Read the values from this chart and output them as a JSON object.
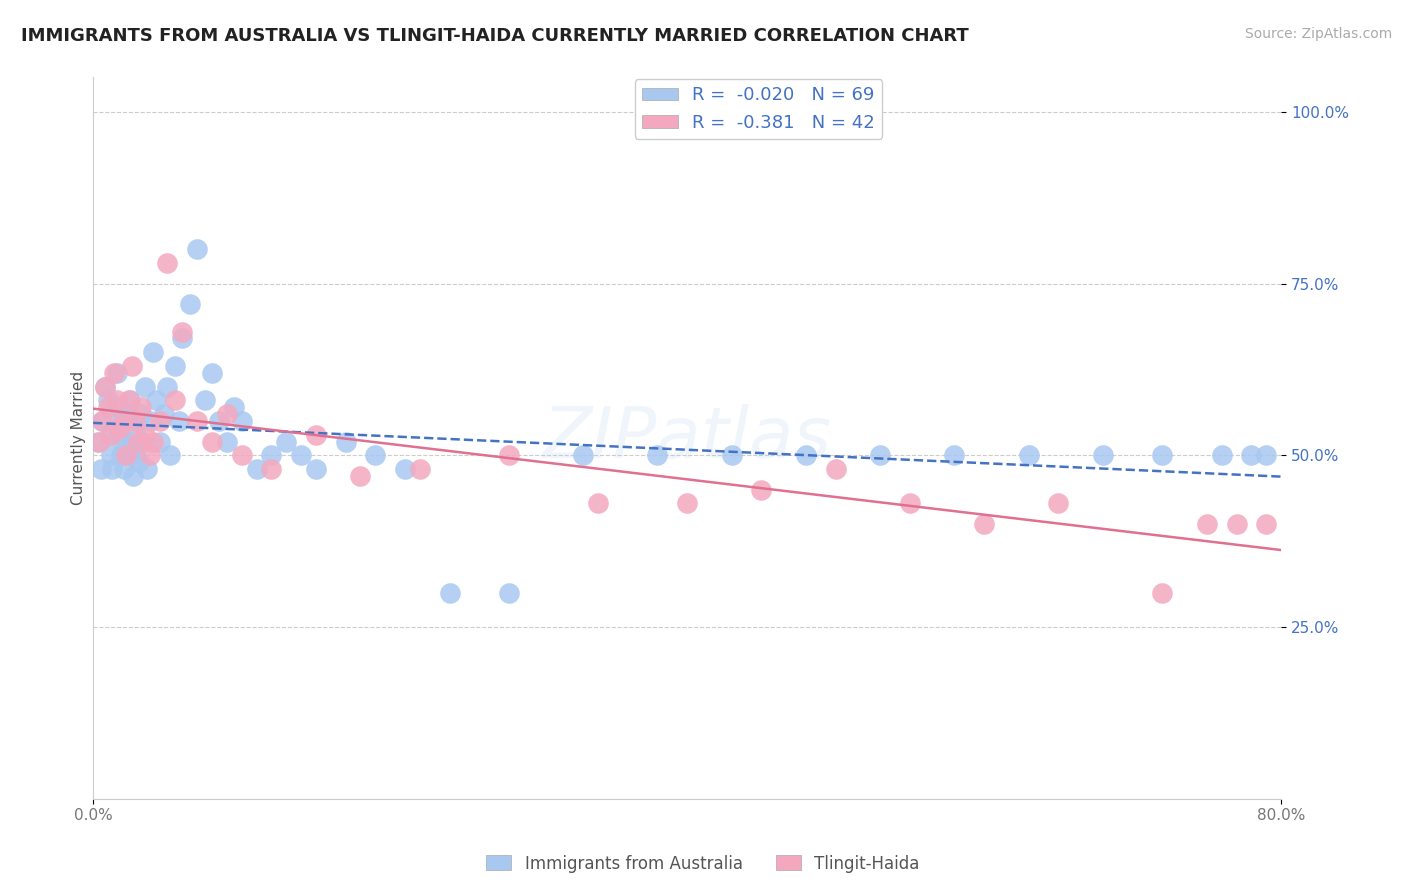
{
  "title": "IMMIGRANTS FROM AUSTRALIA VS TLINGIT-HAIDA CURRENTLY MARRIED CORRELATION CHART",
  "source_text": "Source: ZipAtlas.com",
  "ylabel": "Currently Married",
  "xlim": [
    0.0,
    80.0
  ],
  "ylim": [
    0.0,
    105.0
  ],
  "ytick_positions": [
    25.0,
    50.0,
    75.0,
    100.0
  ],
  "ytick_labels": [
    "25.0%",
    "50.0%",
    "75.0%",
    "100.0%"
  ],
  "background_color": "#ffffff",
  "series": [
    {
      "name": "Immigrants from Australia",
      "R": -0.02,
      "N": 69,
      "color": "#a8c8f0",
      "line_color": "#4472c4",
      "line_style": "--",
      "x": [
        0.3,
        0.5,
        0.6,
        0.8,
        1.0,
        1.1,
        1.2,
        1.3,
        1.5,
        1.6,
        1.7,
        1.8,
        1.9,
        2.0,
        2.1,
        2.2,
        2.3,
        2.4,
        2.5,
        2.6,
        2.7,
        2.8,
        2.9,
        3.0,
        3.1,
        3.2,
        3.3,
        3.5,
        3.6,
        3.8,
        4.0,
        4.2,
        4.5,
        4.8,
        5.0,
        5.2,
        5.5,
        5.8,
        6.0,
        6.5,
        7.0,
        7.5,
        8.0,
        8.5,
        9.0,
        9.5,
        10.0,
        11.0,
        12.0,
        13.0,
        14.0,
        15.0,
        17.0,
        19.0,
        21.0,
        24.0,
        28.0,
        33.0,
        38.0,
        43.0,
        48.0,
        53.0,
        58.0,
        63.0,
        68.0,
        72.0,
        76.0,
        78.0,
        79.0
      ],
      "y": [
        52.0,
        48.0,
        55.0,
        60.0,
        58.0,
        53.0,
        50.0,
        48.0,
        55.0,
        62.0,
        57.0,
        53.0,
        50.0,
        52.0,
        48.0,
        55.0,
        50.0,
        56.0,
        58.0,
        52.0,
        47.0,
        50.0,
        53.0,
        55.0,
        49.0,
        56.0,
        52.0,
        60.0,
        48.0,
        55.0,
        65.0,
        58.0,
        52.0,
        56.0,
        60.0,
        50.0,
        63.0,
        55.0,
        67.0,
        72.0,
        80.0,
        58.0,
        62.0,
        55.0,
        52.0,
        57.0,
        55.0,
        48.0,
        50.0,
        52.0,
        50.0,
        48.0,
        52.0,
        50.0,
        48.0,
        30.0,
        30.0,
        50.0,
        50.0,
        50.0,
        50.0,
        50.0,
        50.0,
        50.0,
        50.0,
        50.0,
        50.0,
        50.0,
        50.0
      ]
    },
    {
      "name": "Tlingit-Haida",
      "R": -0.381,
      "N": 42,
      "color": "#f4a8c0",
      "line_color": "#e07090",
      "line_style": "-",
      "x": [
        0.4,
        0.6,
        0.8,
        1.0,
        1.2,
        1.4,
        1.6,
        1.8,
        2.0,
        2.2,
        2.4,
        2.6,
        2.8,
        3.0,
        3.2,
        3.5,
        3.8,
        4.0,
        4.5,
        5.0,
        5.5,
        6.0,
        7.0,
        8.0,
        9.0,
        10.0,
        12.0,
        15.0,
        18.0,
        22.0,
        28.0,
        34.0,
        40.0,
        45.0,
        50.0,
        55.0,
        60.0,
        65.0,
        72.0,
        75.0,
        77.0,
        79.0
      ],
      "y": [
        52.0,
        55.0,
        60.0,
        57.0,
        53.0,
        62.0,
        58.0,
        54.0,
        55.0,
        50.0,
        58.0,
        63.0,
        55.0,
        52.0,
        57.0,
        53.0,
        50.0,
        52.0,
        55.0,
        78.0,
        58.0,
        68.0,
        55.0,
        52.0,
        56.0,
        50.0,
        48.0,
        53.0,
        47.0,
        48.0,
        50.0,
        43.0,
        43.0,
        45.0,
        48.0,
        43.0,
        40.0,
        43.0,
        30.0,
        40.0,
        40.0,
        40.0
      ]
    }
  ],
  "title_fontsize": 13,
  "axis_label_fontsize": 11,
  "tick_fontsize": 11,
  "source_fontsize": 10
}
